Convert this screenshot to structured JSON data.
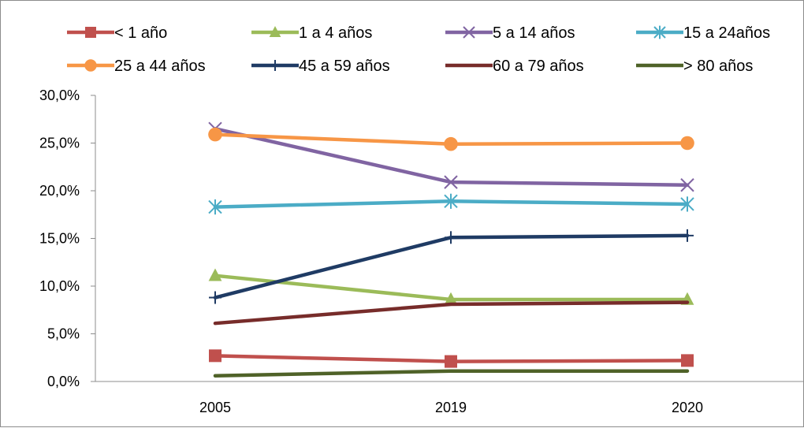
{
  "chart_data": {
    "type": "line",
    "title": "",
    "xlabel": "",
    "ylabel": "",
    "categories": [
      "2005",
      "2019",
      "2020"
    ],
    "ylim": [
      0,
      30
    ],
    "ytick_labels": [
      "0,0%",
      "5,0%",
      "10,0%",
      "15,0%",
      "20,0%",
      "25,0%",
      "30,0%"
    ],
    "grid": false,
    "legend_position": "top",
    "series": [
      {
        "name": "< 1 año",
        "color": "#c0504d",
        "marker": "square",
        "values": [
          2.7,
          2.1,
          2.2
        ]
      },
      {
        "name": "1 a 4 años",
        "color": "#9bbb59",
        "marker": "triangle",
        "values": [
          11.1,
          8.6,
          8.6
        ]
      },
      {
        "name": "5 a 14 años",
        "color": "#8064a2",
        "marker": "x",
        "values": [
          26.5,
          20.9,
          20.6
        ]
      },
      {
        "name": "15 a 24años",
        "color": "#4bacc6",
        "marker": "asterisk",
        "values": [
          18.3,
          18.9,
          18.6
        ]
      },
      {
        "name": "25 a 44 años",
        "color": "#f79646",
        "marker": "circle",
        "values": [
          25.9,
          24.9,
          25.0
        ]
      },
      {
        "name": "45 a 59 años",
        "color": "#1f3b64",
        "marker": "plus",
        "values": [
          8.8,
          15.1,
          15.3
        ]
      },
      {
        "name": "60 a 79 años",
        "color": "#772c2a",
        "marker": "none",
        "values": [
          6.1,
          8.1,
          8.3
        ]
      },
      {
        "name": "> 80 años",
        "color": "#4f6228",
        "marker": "none",
        "values": [
          0.6,
          1.1,
          1.1
        ]
      }
    ]
  }
}
